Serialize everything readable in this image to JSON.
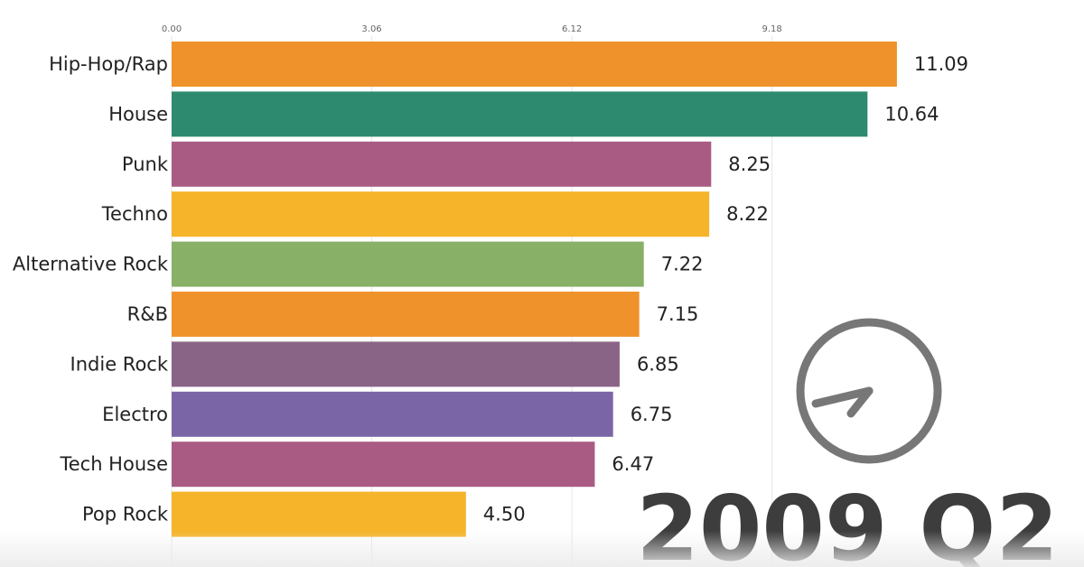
{
  "chart_data": {
    "type": "bar",
    "orientation": "horizontal",
    "title": "",
    "period": "2009 Q2",
    "xlim": [
      0,
      11.6
    ],
    "ticks": [
      {
        "value": 0.0,
        "label": "0.00"
      },
      {
        "value": 3.06,
        "label": "3.06"
      },
      {
        "value": 6.12,
        "label": "6.12"
      },
      {
        "value": 9.18,
        "label": "9.18"
      }
    ],
    "grid": true,
    "bars": [
      {
        "category": "Hip-Hop/Rap",
        "value": 11.09,
        "label": "11.09",
        "color": "#f0922b"
      },
      {
        "category": "House",
        "value": 10.64,
        "label": "10.64",
        "color": "#2d8a6e"
      },
      {
        "category": "Punk",
        "value": 8.25,
        "label": "8.25",
        "color": "#a95b84"
      },
      {
        "category": "Techno",
        "value": 8.22,
        "label": "8.22",
        "color": "#f5b42a"
      },
      {
        "category": "Alternative Rock",
        "value": 7.22,
        "label": "7.22",
        "color": "#88b066"
      },
      {
        "category": "R&B",
        "value": 7.15,
        "label": "7.15",
        "color": "#f0922b"
      },
      {
        "category": "Indie Rock",
        "value": 6.85,
        "label": "6.85",
        "color": "#8a6487"
      },
      {
        "category": "Electro",
        "value": 6.75,
        "label": "6.75",
        "color": "#7a66a6"
      },
      {
        "category": "Tech House",
        "value": 6.47,
        "label": "6.47",
        "color": "#a95b84"
      },
      {
        "category": "Pop Rock",
        "value": 4.5,
        "label": "4.50",
        "color": "#f5b42a"
      }
    ],
    "clock": {
      "color": "#777777"
    }
  }
}
